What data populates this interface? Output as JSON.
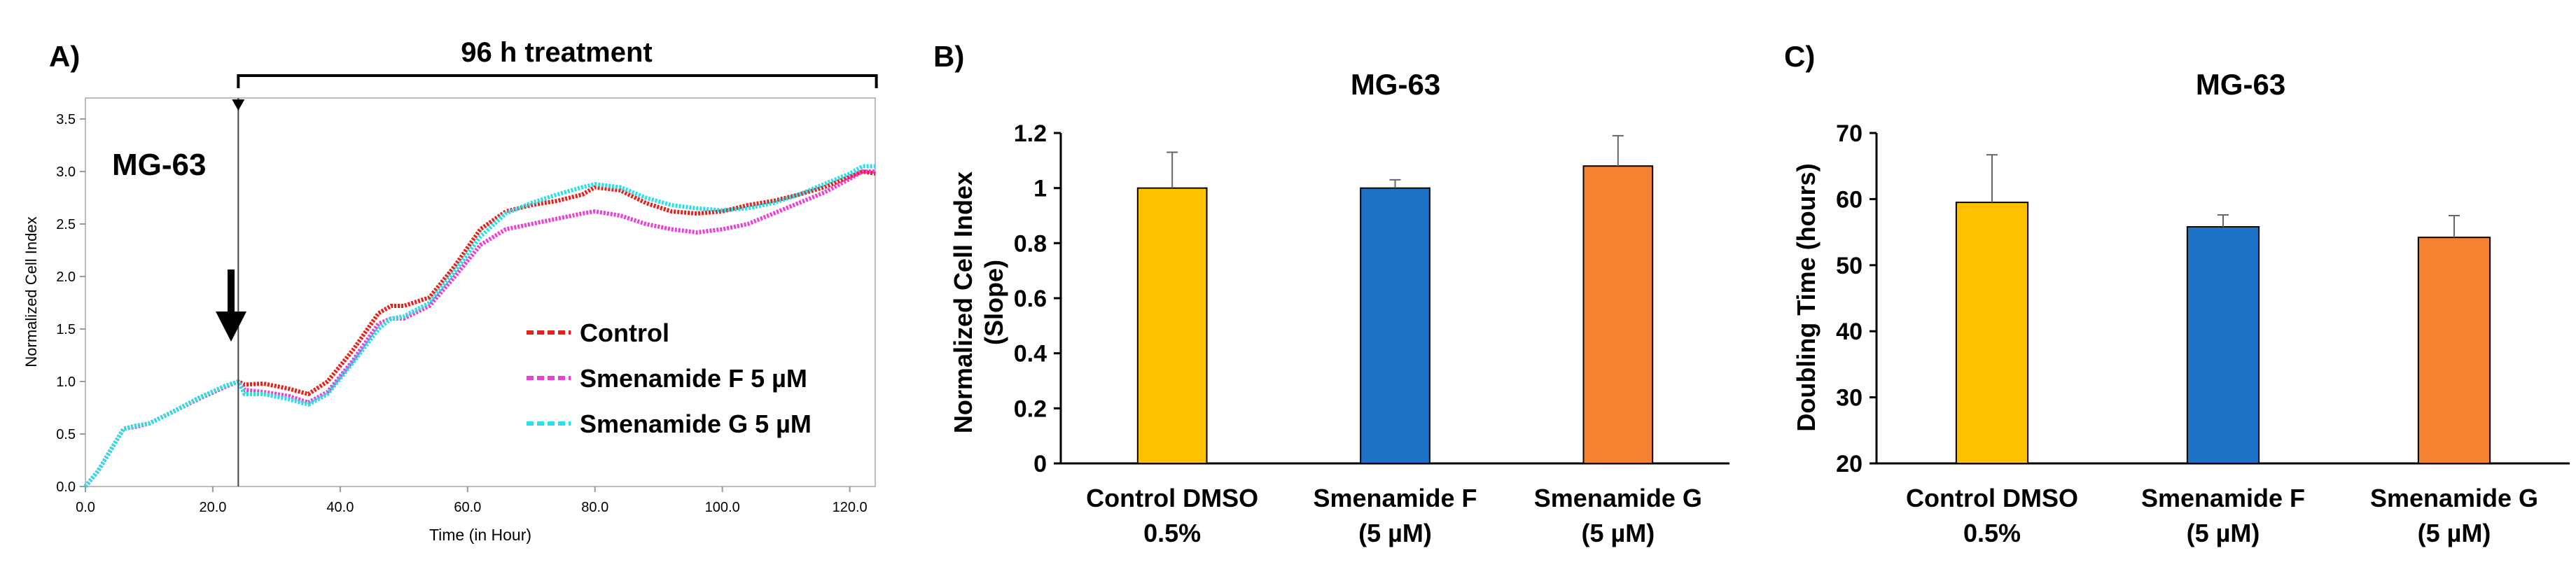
{
  "chart_data": [
    {
      "panel": "A)",
      "type": "line",
      "title": "",
      "cell_line": "MG-63",
      "annotation": "96 h treatment",
      "xlabel": "Time (in Hour)",
      "ylabel": "Normalized Cell Index",
      "xlim": [
        0,
        124
      ],
      "ylim": [
        0,
        3.7
      ],
      "xticks": [
        "0.0",
        "20.0",
        "40.0",
        "60.0",
        "80.0",
        "100.0",
        "120.0"
      ],
      "xtick_values": [
        0,
        20,
        40,
        60,
        80,
        100,
        120
      ],
      "yticks": [
        "0.0",
        "0.5",
        "1.0",
        "1.5",
        "2.0",
        "2.5",
        "3.0",
        "3.5"
      ],
      "ytick_values": [
        0,
        0.5,
        1.0,
        1.5,
        2.0,
        2.5,
        3.0,
        3.5
      ],
      "normalization_time": 24,
      "series": [
        {
          "name": "Control",
          "color": "#e8201a",
          "x": [
            0,
            2,
            4,
            6,
            8,
            10,
            14,
            18,
            22,
            24,
            25,
            28,
            32,
            35,
            38,
            42,
            46,
            48,
            50,
            54,
            58,
            62,
            66,
            70,
            74,
            78,
            80,
            84,
            88,
            92,
            96,
            100,
            104,
            108,
            112,
            116,
            120,
            122,
            124
          ],
          "y": [
            0.0,
            0.15,
            0.35,
            0.55,
            0.58,
            0.6,
            0.72,
            0.85,
            0.95,
            1.0,
            0.97,
            0.98,
            0.93,
            0.88,
            1.0,
            1.3,
            1.65,
            1.72,
            1.72,
            1.8,
            2.1,
            2.45,
            2.62,
            2.68,
            2.72,
            2.78,
            2.85,
            2.82,
            2.7,
            2.62,
            2.6,
            2.62,
            2.68,
            2.72,
            2.78,
            2.85,
            2.95,
            3.0,
            2.98
          ]
        },
        {
          "name": "Smenamide F 5 µM",
          "color": "#ec3fd8",
          "x": [
            0,
            2,
            4,
            6,
            8,
            10,
            14,
            18,
            22,
            24,
            25,
            28,
            32,
            35,
            38,
            42,
            46,
            48,
            50,
            54,
            58,
            62,
            66,
            70,
            74,
            78,
            80,
            84,
            88,
            92,
            96,
            100,
            104,
            108,
            112,
            116,
            120,
            122,
            124
          ],
          "y": [
            0.0,
            0.15,
            0.35,
            0.55,
            0.57,
            0.6,
            0.72,
            0.84,
            0.95,
            1.0,
            0.92,
            0.9,
            0.86,
            0.8,
            0.9,
            1.2,
            1.55,
            1.6,
            1.6,
            1.72,
            2.0,
            2.3,
            2.45,
            2.5,
            2.55,
            2.6,
            2.62,
            2.58,
            2.5,
            2.45,
            2.42,
            2.45,
            2.5,
            2.6,
            2.7,
            2.8,
            2.93,
            3.0,
            3.0
          ]
        },
        {
          "name": "Smenamide G 5 µM",
          "color": "#2ae0e8",
          "x": [
            0,
            2,
            4,
            6,
            8,
            10,
            14,
            18,
            22,
            24,
            25,
            28,
            32,
            35,
            38,
            42,
            46,
            48,
            50,
            54,
            58,
            62,
            66,
            70,
            74,
            78,
            80,
            84,
            88,
            92,
            96,
            100,
            104,
            108,
            112,
            116,
            120,
            122,
            124
          ],
          "y": [
            0.0,
            0.15,
            0.35,
            0.55,
            0.58,
            0.6,
            0.72,
            0.85,
            0.96,
            1.0,
            0.88,
            0.88,
            0.83,
            0.78,
            0.88,
            1.18,
            1.5,
            1.6,
            1.62,
            1.75,
            2.05,
            2.38,
            2.6,
            2.7,
            2.78,
            2.85,
            2.88,
            2.85,
            2.75,
            2.68,
            2.65,
            2.63,
            2.65,
            2.7,
            2.78,
            2.88,
            2.98,
            3.05,
            3.05
          ]
        }
      ]
    },
    {
      "panel": "B)",
      "type": "bar",
      "title": "MG-63",
      "ylabel": "Normalized Cell Index (Slope)",
      "ylabel_lines": [
        "Normalized Cell Index",
        "(Slope)"
      ],
      "ylim": [
        0,
        1.2
      ],
      "yticks": [
        "0",
        "0.2",
        "0.4",
        "0.6",
        "0.8",
        "1",
        "1.2"
      ],
      "ytick_values": [
        0,
        0.2,
        0.4,
        0.6,
        0.8,
        1.0,
        1.2
      ],
      "categories": [
        {
          "line1": "Control DMSO",
          "line2": "0.5%"
        },
        {
          "line1": "Smenamide F",
          "line2": "(5 µM)"
        },
        {
          "line1": "Smenamide G",
          "line2": "(5 µM)"
        }
      ],
      "values": [
        1.0,
        1.0,
        1.08
      ],
      "errors": [
        0.13,
        0.03,
        0.11
      ],
      "colors": [
        "#ffc000",
        "#1f73c7",
        "#f58231"
      ]
    },
    {
      "panel": "C)",
      "type": "bar",
      "title": "MG-63",
      "ylabel": "Doubling Time (hours)",
      "ylim": [
        20,
        70
      ],
      "yticks": [
        "20",
        "30",
        "40",
        "50",
        "60",
        "70"
      ],
      "ytick_values": [
        20,
        30,
        40,
        50,
        60,
        70
      ],
      "categories": [
        {
          "line1": "Control DMSO",
          "line2": "0.5%"
        },
        {
          "line1": "Smenamide F",
          "line2": "(5 µM)"
        },
        {
          "line1": "Smenamide G",
          "line2": "(5 µM)"
        }
      ],
      "values": [
        59.5,
        55.8,
        54.2
      ],
      "errors": [
        7.2,
        1.8,
        3.3
      ],
      "colors": [
        "#ffc000",
        "#1f73c7",
        "#f58231"
      ]
    }
  ]
}
